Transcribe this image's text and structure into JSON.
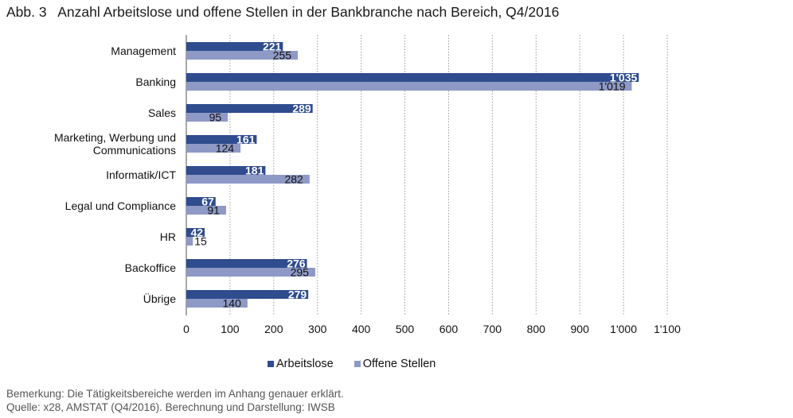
{
  "chart_data": {
    "type": "bar",
    "orientation": "horizontal",
    "title": "Abb. 3   Anzahl Arbeitslose und offene Stellen in der Bankbranche nach Bereich, Q4/2016",
    "categories": [
      "Management",
      "Banking",
      "Sales",
      "Marketing, Werbung und Communications",
      "Informatik/ICT",
      "Legal und Compliance",
      "HR",
      "Backoffice",
      "Übrige"
    ],
    "category_lines": [
      [
        "Management"
      ],
      [
        "Banking"
      ],
      [
        "Sales"
      ],
      [
        "Marketing, Werbung und",
        "Communications"
      ],
      [
        "Informatik/ICT"
      ],
      [
        "Legal und Compliance"
      ],
      [
        "HR"
      ],
      [
        "Backoffice"
      ],
      [
        "Übrige"
      ]
    ],
    "series": [
      {
        "name": "Arbeitslose",
        "color": "#2F4C8E",
        "label_color": "#ffffff",
        "values": [
          221,
          1035,
          289,
          161,
          181,
          67,
          42,
          276,
          279
        ],
        "labels": [
          "221",
          "1'035",
          "289",
          "161",
          "181",
          "67",
          "42",
          "276",
          "279"
        ]
      },
      {
        "name": "Offene Stellen",
        "color": "#8E99C6",
        "label_color": "#111111",
        "values": [
          255,
          1019,
          95,
          124,
          282,
          91,
          15,
          295,
          140
        ],
        "labels": [
          "255",
          "1'019",
          "95",
          "124",
          "282",
          "91",
          "15",
          "295",
          "140"
        ]
      }
    ],
    "xlim": [
      0,
      1100
    ],
    "xticks": [
      0,
      100,
      200,
      300,
      400,
      500,
      600,
      700,
      800,
      900,
      1000,
      1100
    ],
    "xtick_labels": [
      "0",
      "100",
      "200",
      "300",
      "400",
      "500",
      "600",
      "700",
      "800",
      "900",
      "1'000",
      "1'100"
    ],
    "xlabel": "",
    "ylabel": "",
    "grid": "vertical dotted",
    "legend_position": "bottom-center"
  },
  "legend": {
    "items": [
      {
        "label": "Arbeitslose",
        "color": "#2F4C8E"
      },
      {
        "label": "Offene Stellen",
        "color": "#8E99C6"
      }
    ]
  },
  "notes": {
    "remark": "Bemerkung: Die Tätigkeitsbereiche werden im Anhang genauer erklärt.",
    "source": "Quelle: x28, AMSTAT (Q4/2016). Berechnung und Darstellung: IWSB"
  }
}
